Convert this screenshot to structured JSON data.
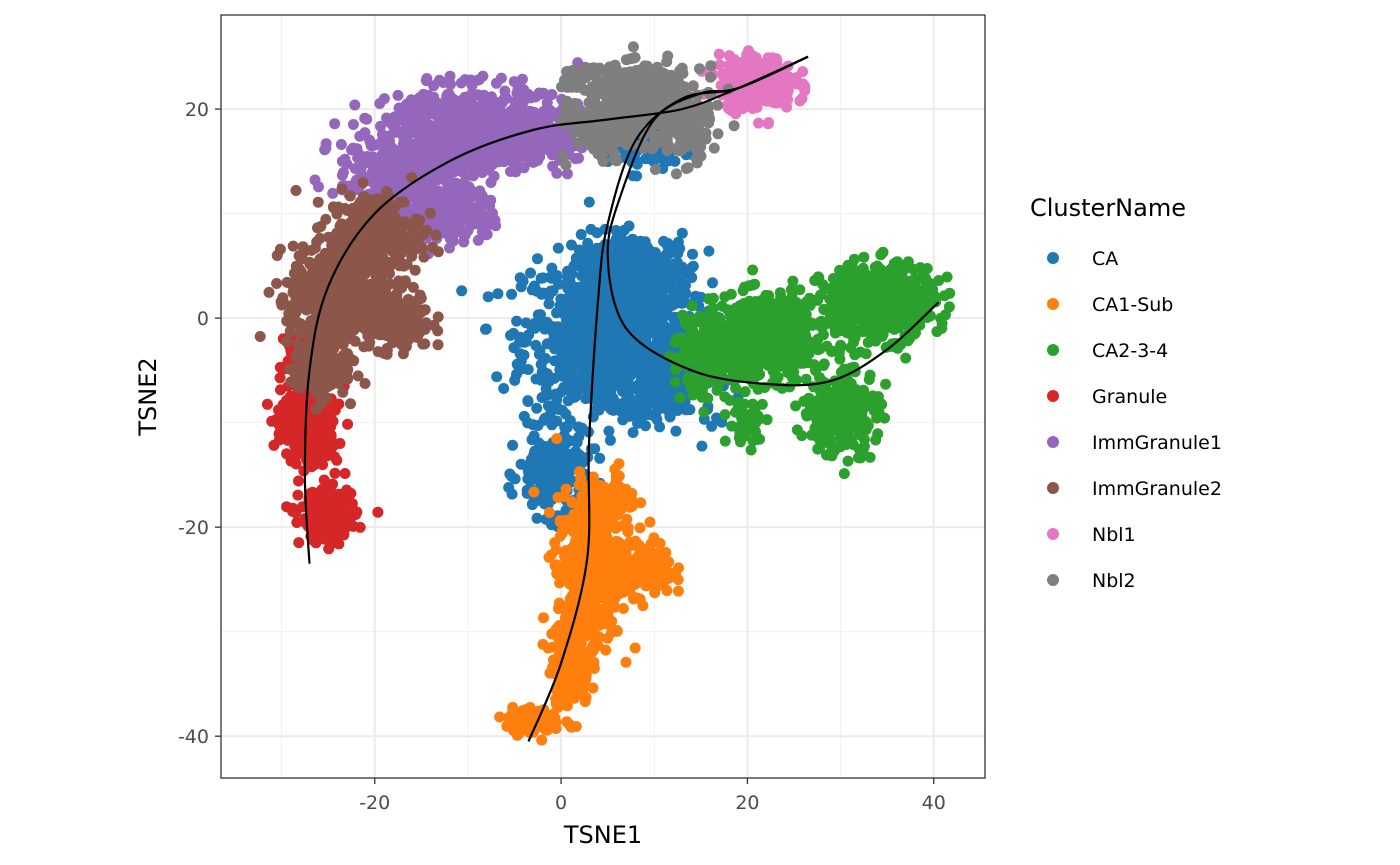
{
  "chart_data": {
    "type": "scatter",
    "xlabel": "TSNE1",
    "ylabel": "TSNE2",
    "xlim": [
      -36.5,
      45.5
    ],
    "ylim": [
      -44,
      29
    ],
    "xticks": [
      -20,
      0,
      20,
      40
    ],
    "yticks": [
      -40,
      -20,
      0,
      20
    ],
    "grid": true,
    "legend": {
      "title": "ClusterName",
      "position": "right"
    },
    "series": [
      {
        "name": "CA",
        "color": "#1F77B4",
        "regions": [
          {
            "cx": 5,
            "cy": -2,
            "rx": 9,
            "ry": 8,
            "n": 900
          },
          {
            "cx": 8,
            "cy": 4,
            "rx": 6,
            "ry": 4,
            "n": 300
          },
          {
            "cx": -1,
            "cy": -15,
            "rx": 3.5,
            "ry": 4,
            "n": 200
          },
          {
            "cx": 12,
            "cy": -5,
            "rx": 5,
            "ry": 5,
            "n": 250
          },
          {
            "cx": 9,
            "cy": 16,
            "rx": 5,
            "ry": 2,
            "n": 60
          }
        ]
      },
      {
        "name": "CA1-Sub",
        "color": "#FF7F0E",
        "regions": [
          {
            "cx": 3,
            "cy": -24,
            "rx": 3.5,
            "ry": 7,
            "n": 500
          },
          {
            "cx": 9,
            "cy": -24,
            "rx": 3,
            "ry": 2.5,
            "n": 180
          },
          {
            "cx": 1,
            "cy": -33,
            "rx": 2,
            "ry": 4,
            "n": 200
          },
          {
            "cx": -3,
            "cy": -38.5,
            "rx": 3,
            "ry": 1.2,
            "n": 100
          },
          {
            "cx": 5,
            "cy": -18,
            "rx": 3,
            "ry": 3,
            "n": 120
          }
        ]
      },
      {
        "name": "CA2-3-4",
        "color": "#2CA02C",
        "regions": [
          {
            "cx": 22,
            "cy": -2,
            "rx": 7,
            "ry": 4,
            "n": 550
          },
          {
            "cx": 34,
            "cy": 1.5,
            "rx": 6,
            "ry": 3.5,
            "n": 500
          },
          {
            "cx": 30,
            "cy": -9,
            "rx": 4,
            "ry": 4,
            "n": 250
          },
          {
            "cx": 16,
            "cy": -4,
            "rx": 4,
            "ry": 3,
            "n": 150
          },
          {
            "cx": 20,
            "cy": -10,
            "rx": 2,
            "ry": 2,
            "n": 50
          }
        ]
      },
      {
        "name": "Granule",
        "color": "#D62728",
        "regions": [
          {
            "cx": -27,
            "cy": -10,
            "rx": 3,
            "ry": 4,
            "n": 350
          },
          {
            "cx": -25,
            "cy": -19,
            "rx": 3,
            "ry": 2.5,
            "n": 200
          },
          {
            "cx": -28,
            "cy": -3,
            "rx": 2,
            "ry": 2,
            "n": 60
          }
        ]
      },
      {
        "name": "ImmGranule1",
        "color": "#9467BD",
        "regions": [
          {
            "cx": -10,
            "cy": 18,
            "rx": 8,
            "ry": 4,
            "n": 700
          },
          {
            "cx": -3,
            "cy": 18,
            "rx": 5,
            "ry": 3,
            "n": 300
          },
          {
            "cx": -18,
            "cy": 14,
            "rx": 6,
            "ry": 4,
            "n": 300
          },
          {
            "cx": -12,
            "cy": 10,
            "rx": 5,
            "ry": 3,
            "n": 200
          }
        ]
      },
      {
        "name": "ImmGranule2",
        "color": "#8C564B",
        "regions": [
          {
            "cx": -24,
            "cy": 2,
            "rx": 5,
            "ry": 5,
            "n": 600
          },
          {
            "cx": -20,
            "cy": 8,
            "rx": 5,
            "ry": 4,
            "n": 300
          },
          {
            "cx": -26,
            "cy": -5,
            "rx": 3,
            "ry": 2.5,
            "n": 150
          },
          {
            "cx": -18,
            "cy": 0,
            "rx": 4,
            "ry": 3,
            "n": 200
          }
        ]
      },
      {
        "name": "Nbl1",
        "color": "#E377C2",
        "regions": [
          {
            "cx": 21,
            "cy": 22.5,
            "rx": 4,
            "ry": 2.5,
            "n": 300
          }
        ]
      },
      {
        "name": "Nbl2",
        "color": "#7F7F7F",
        "regions": [
          {
            "cx": 9,
            "cy": 21,
            "rx": 6,
            "ry": 3,
            "n": 400
          },
          {
            "cx": 5,
            "cy": 18,
            "rx": 4,
            "ry": 2.5,
            "n": 200
          },
          {
            "cx": 13,
            "cy": 18,
            "rx": 3,
            "ry": 3,
            "n": 150
          },
          {
            "cx": 2,
            "cy": 23,
            "rx": 2,
            "ry": 1,
            "n": 40
          }
        ]
      }
    ],
    "trajectories": [
      {
        "points": [
          [
            -27,
            -23.5
          ],
          [
            -27.5,
            -15
          ],
          [
            -27,
            -5
          ],
          [
            -25,
            3
          ],
          [
            -20,
            10
          ],
          [
            -12,
            15
          ],
          [
            -3,
            18
          ],
          [
            5,
            19
          ],
          [
            13,
            20
          ],
          [
            19,
            22
          ],
          [
            26.5,
            25
          ]
        ]
      },
      {
        "points": [
          [
            -3.5,
            -40.5
          ],
          [
            0,
            -33
          ],
          [
            2.8,
            -23
          ],
          [
            3,
            -12
          ],
          [
            4,
            2
          ],
          [
            5,
            9
          ],
          [
            8,
            17
          ],
          [
            13,
            21
          ],
          [
            19,
            22
          ],
          [
            26.5,
            25
          ]
        ]
      },
      {
        "points": [
          [
            40.5,
            1.5
          ],
          [
            35,
            -3
          ],
          [
            29,
            -6
          ],
          [
            22,
            -6.3
          ],
          [
            14,
            -5
          ],
          [
            7,
            -1
          ],
          [
            5,
            6
          ],
          [
            6.5,
            12
          ],
          [
            10,
            19
          ],
          [
            15,
            21.5
          ],
          [
            19,
            22
          ],
          [
            26.5,
            25
          ]
        ]
      }
    ]
  }
}
